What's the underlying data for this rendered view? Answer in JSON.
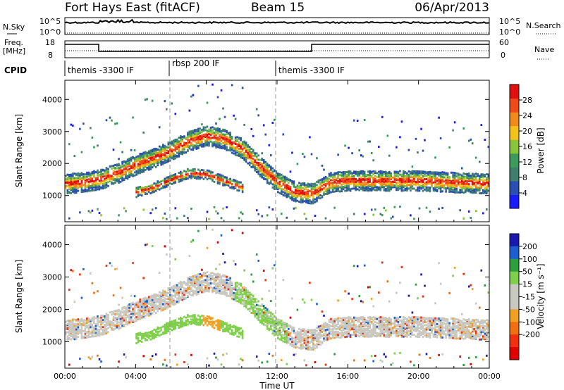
{
  "header": {
    "station": "Fort Hays East (fitACF)",
    "beam": "Beam 15",
    "date": "06/Apr/2013"
  },
  "panels": {
    "nsky_label": "N.Sky",
    "nsearch_label": "N.Search",
    "noise_ticks": [
      "10^5",
      "10^0"
    ],
    "freq_label_1": "Freq.",
    "freq_label_2": "[MHz]",
    "freq_ticks": [
      "18",
      "8"
    ],
    "nave_label": "Nave",
    "nave_ticks": [
      "60",
      "0"
    ],
    "cpid_label": "CPID",
    "cpid_segments": [
      "themis -3300 IF",
      "rbsp 200 IF",
      "themis -3300 IF"
    ]
  },
  "colors": {
    "power_scale": [
      "#1a1aff",
      "#2b4fb0",
      "#3e7f6e",
      "#3c9a5a",
      "#8ac33c",
      "#f0c21a",
      "#f08a1a",
      "#f04a1a",
      "#e01010"
    ],
    "velocity_scale": [
      "#1a1ab0",
      "#1e5fd0",
      "#2e9e3e",
      "#7ed04a",
      "#c8c8c0",
      "#c8c8c0",
      "#f0a020",
      "#f07010",
      "#f03010",
      "#e00000"
    ]
  },
  "chart_data": [
    {
      "type": "heatmap",
      "name": "backscatter-power",
      "xlabel": "",
      "ylabel": "Slant Range [km]",
      "x_ticks": [
        "00:00",
        "04:00",
        "08:00",
        "12:00",
        "16:00",
        "20:00",
        "00:00"
      ],
      "y_ticks": [
        1000,
        2000,
        3000,
        4000
      ],
      "xlim_hours": [
        0,
        24
      ],
      "ylim_km": [
        180,
        4600
      ],
      "colorbar": {
        "label": "Power [dB]",
        "ticks": [
          4,
          8,
          12,
          16,
          20,
          24,
          28
        ],
        "range": [
          0,
          32
        ]
      },
      "bands": [
        {
          "x": [
            0,
            1,
            2,
            3,
            4,
            5,
            6,
            7,
            8,
            9,
            10,
            11,
            12,
            13,
            14,
            15,
            16,
            18,
            20,
            22,
            24
          ],
          "y": [
            1350,
            1400,
            1500,
            1700,
            1950,
            2150,
            2400,
            2700,
            2850,
            2750,
            2450,
            1900,
            1400,
            1100,
            1050,
            1400,
            1450,
            1450,
            1450,
            1400,
            1350
          ]
        },
        {
          "x": [
            4,
            5,
            6,
            7,
            8,
            9,
            10
          ],
          "y": [
            1100,
            1250,
            1500,
            1700,
            1650,
            1450,
            1250
          ]
        }
      ]
    },
    {
      "type": "heatmap",
      "name": "line-of-sight-velocity",
      "xlabel": "Time UT",
      "ylabel": "Slant Range [km]",
      "x_ticks": [
        "00:00",
        "04:00",
        "08:00",
        "12:00",
        "16:00",
        "20:00",
        "00:00"
      ],
      "y_ticks": [
        1000,
        2000,
        3000,
        4000
      ],
      "xlim_hours": [
        0,
        24
      ],
      "ylim_km": [
        180,
        4600
      ],
      "colorbar": {
        "label": "Velocity [m s⁻¹]",
        "ticks": [
          200,
          100,
          50,
          15,
          -15,
          -50,
          -100,
          -200
        ]
      }
    }
  ]
}
